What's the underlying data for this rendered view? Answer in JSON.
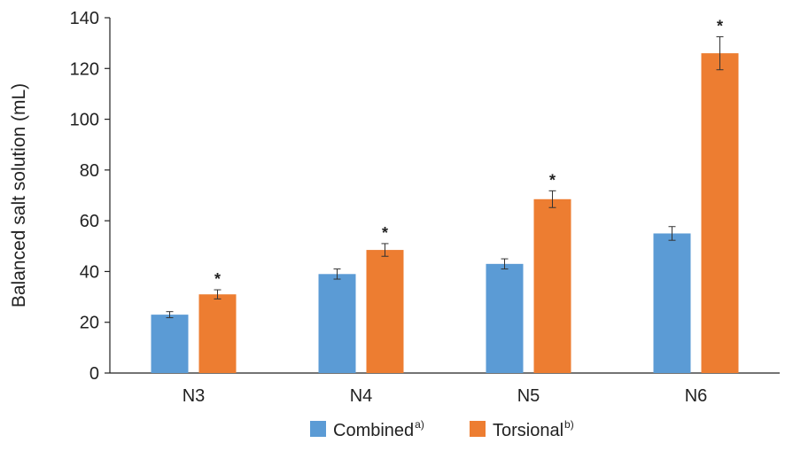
{
  "chart_data": {
    "type": "bar",
    "ylabel": "Balanced salt solution (mL)",
    "xlabel": "",
    "ylim": [
      0,
      140
    ],
    "yticks": [
      0,
      20,
      40,
      60,
      80,
      100,
      120,
      140
    ],
    "categories": [
      "N3",
      "N4",
      "N5",
      "N6"
    ],
    "grid": false,
    "legend_position": "bottom",
    "series": [
      {
        "name": "Combined",
        "superscript": "a)",
        "color": "#5b9bd5",
        "values": [
          23,
          39,
          43,
          55
        ],
        "errors": [
          1.2,
          2.0,
          2.0,
          2.7
        ]
      },
      {
        "name": "Torsional",
        "superscript": "b)",
        "color": "#ed7d31",
        "values": [
          31,
          48.5,
          68.5,
          126
        ],
        "errors": [
          1.8,
          2.5,
          3.3,
          6.5
        ]
      }
    ],
    "annotations": [
      {
        "category": "N3",
        "series": "Torsional",
        "text": "*"
      },
      {
        "category": "N4",
        "series": "Torsional",
        "text": "*"
      },
      {
        "category": "N5",
        "series": "Torsional",
        "text": "*"
      },
      {
        "category": "N6",
        "series": "Torsional",
        "text": "*"
      }
    ]
  }
}
